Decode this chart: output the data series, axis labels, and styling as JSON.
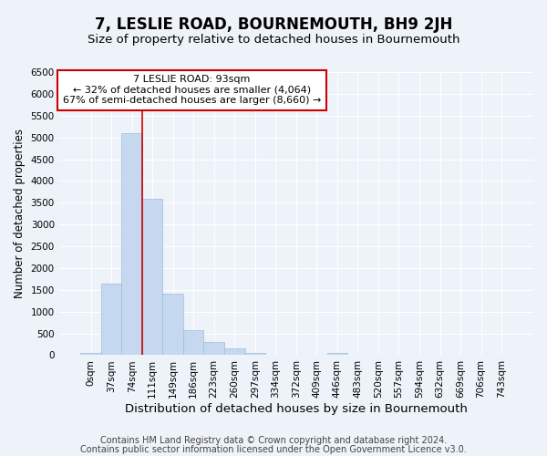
{
  "title": "7, LESLIE ROAD, BOURNEMOUTH, BH9 2JH",
  "subtitle": "Size of property relative to detached houses in Bournemouth",
  "xlabel": "Distribution of detached houses by size in Bournemouth",
  "ylabel": "Number of detached properties",
  "footer_line1": "Contains HM Land Registry data © Crown copyright and database right 2024.",
  "footer_line2": "Contains public sector information licensed under the Open Government Licence v3.0.",
  "categories": [
    "0sqm",
    "37sqm",
    "74sqm",
    "111sqm",
    "149sqm",
    "186sqm",
    "223sqm",
    "260sqm",
    "297sqm",
    "334sqm",
    "372sqm",
    "409sqm",
    "446sqm",
    "483sqm",
    "520sqm",
    "557sqm",
    "594sqm",
    "632sqm",
    "669sqm",
    "706sqm",
    "743sqm"
  ],
  "bar_values": [
    60,
    1650,
    5100,
    3600,
    1420,
    580,
    300,
    150,
    50,
    0,
    0,
    0,
    50,
    0,
    0,
    0,
    0,
    0,
    0,
    0,
    0
  ],
  "bar_color": "#c5d8f0",
  "bar_edge_color": "#a0bcd8",
  "background_color": "#eef2f9",
  "grid_color": "#ffffff",
  "vline_x": 2.5,
  "vline_color": "#cc0000",
  "annotation_box_text": "7 LESLIE ROAD: 93sqm\n← 32% of detached houses are smaller (4,064)\n67% of semi-detached houses are larger (8,660) →",
  "ylim": [
    0,
    6500
  ],
  "yticks": [
    0,
    500,
    1000,
    1500,
    2000,
    2500,
    3000,
    3500,
    4000,
    4500,
    5000,
    5500,
    6000,
    6500
  ],
  "title_fontsize": 12,
  "subtitle_fontsize": 9.5,
  "xlabel_fontsize": 9.5,
  "ylabel_fontsize": 8.5,
  "tick_fontsize": 7.5,
  "annotation_fontsize": 8,
  "footer_fontsize": 7
}
